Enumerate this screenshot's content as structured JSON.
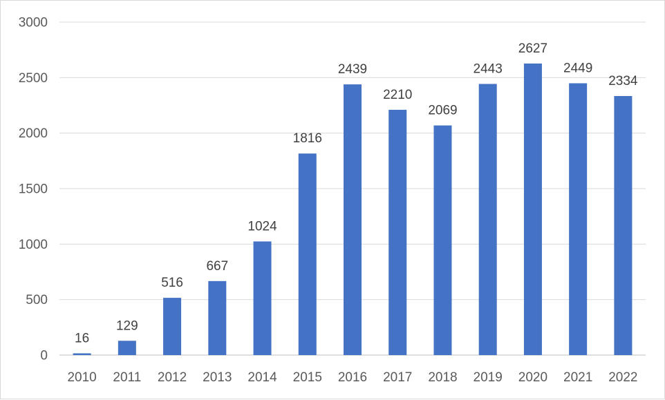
{
  "chart_data": {
    "type": "bar",
    "categories": [
      "2010",
      "2011",
      "2012",
      "2013",
      "2014",
      "2015",
      "2016",
      "2017",
      "2018",
      "2019",
      "2020",
      "2021",
      "2022"
    ],
    "values": [
      16,
      129,
      516,
      667,
      1024,
      1816,
      2439,
      2210,
      2069,
      2443,
      2627,
      2449,
      2334
    ],
    "title": "",
    "xlabel": "",
    "ylabel": "",
    "ylim": [
      0,
      3000
    ],
    "yticks": [
      0,
      500,
      1000,
      1500,
      2000,
      2500,
      3000
    ],
    "grid": true,
    "legend": "none",
    "data_labels": true,
    "bar_color": "#4472C4"
  }
}
